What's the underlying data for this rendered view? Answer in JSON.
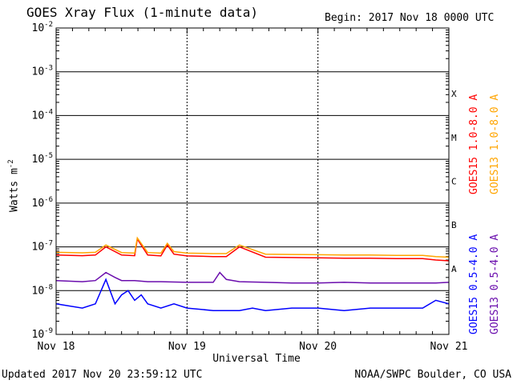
{
  "header": {
    "title": "GOES Xray Flux (1-minute data)",
    "begin": "Begin:  2017 Nov 18 0000 UTC"
  },
  "footer": {
    "updated": "Updated 2017 Nov 20 23:59:12 UTC",
    "credit": "NOAA/SWPC Boulder, CO USA"
  },
  "chart_data": {
    "type": "line",
    "title": "GOES Xray Flux (1-minute data)",
    "xlabel": "Universal Time",
    "ylabel": "Watts m",
    "ylabel_superscript": "-2",
    "yscale": "log",
    "ylim": [
      1e-09,
      0.01
    ],
    "xlim": [
      0,
      3
    ],
    "x_unit": "days since 2017 Nov 18 00:00 UTC",
    "x_ticks": [
      {
        "x": 0,
        "label": "Nov 18"
      },
      {
        "x": 1,
        "label": "Nov 19"
      },
      {
        "x": 2,
        "label": "Nov 20"
      },
      {
        "x": 3,
        "label": "Nov 21"
      }
    ],
    "y_ticks": [
      {
        "exp": -2,
        "label": "10",
        "sup": "-2"
      },
      {
        "exp": -3,
        "label": "10",
        "sup": "-3"
      },
      {
        "exp": -4,
        "label": "10",
        "sup": "-4"
      },
      {
        "exp": -5,
        "label": "10",
        "sup": "-5"
      },
      {
        "exp": -6,
        "label": "10",
        "sup": "-6"
      },
      {
        "exp": -7,
        "label": "10",
        "sup": "-7"
      },
      {
        "exp": -8,
        "label": "10",
        "sup": "-8"
      },
      {
        "exp": -9,
        "label": "10",
        "sup": "-9"
      }
    ],
    "flare_classes": [
      {
        "label": "X",
        "exp": -3.5
      },
      {
        "label": "M",
        "exp": -4.5
      },
      {
        "label": "C",
        "exp": -5.5
      },
      {
        "label": "B",
        "exp": -6.5
      },
      {
        "label": "A",
        "exp": -7.5
      }
    ],
    "grid": true,
    "legend_position": "right",
    "series": [
      {
        "name": "GOES15 1.0-8.0 A",
        "color": "#ff0000",
        "x": [
          0,
          0.2,
          0.3,
          0.38,
          0.5,
          0.6,
          0.62,
          0.7,
          0.8,
          0.85,
          0.9,
          1.0,
          1.2,
          1.3,
          1.4,
          1.6,
          1.8,
          2.0,
          2.2,
          2.4,
          2.6,
          2.8,
          2.9,
          3.0
        ],
        "y": [
          6.5e-08,
          6.3e-08,
          6.5e-08,
          1e-07,
          6.5e-08,
          6.3e-08,
          1.5e-07,
          6.5e-08,
          6.2e-08,
          1.1e-07,
          6.8e-08,
          6.2e-08,
          6e-08,
          6e-08,
          1e-07,
          5.8e-08,
          5.7e-08,
          5.6e-08,
          5.5e-08,
          5.5e-08,
          5.4e-08,
          5.4e-08,
          5e-08,
          4.8e-08
        ]
      },
      {
        "name": "GOES13 1.0-8.0 A",
        "color": "#ffa500",
        "x": [
          0,
          0.2,
          0.3,
          0.38,
          0.5,
          0.6,
          0.62,
          0.7,
          0.8,
          0.85,
          0.9,
          1.0,
          1.2,
          1.3,
          1.4,
          1.6,
          1.8,
          2.0,
          2.2,
          2.4,
          2.6,
          2.8,
          2.9,
          3.0
        ],
        "y": [
          7.5e-08,
          7.3e-08,
          7.5e-08,
          1.1e-07,
          7.4e-08,
          7.2e-08,
          1.6e-07,
          7.4e-08,
          7.2e-08,
          1.2e-07,
          7.8e-08,
          7.2e-08,
          7e-08,
          7e-08,
          1.1e-07,
          6.8e-08,
          6.7e-08,
          6.6e-08,
          6.5e-08,
          6.5e-08,
          6.4e-08,
          6.4e-08,
          6e-08,
          5.8e-08
        ]
      },
      {
        "name": "GOES15 0.5-4.0 A",
        "color": "#0000ff",
        "x": [
          0,
          0.2,
          0.3,
          0.38,
          0.45,
          0.5,
          0.55,
          0.6,
          0.65,
          0.7,
          0.8,
          0.9,
          1.0,
          1.2,
          1.4,
          1.5,
          1.6,
          1.8,
          2.0,
          2.2,
          2.4,
          2.6,
          2.8,
          2.9,
          3.0
        ],
        "y": [
          5e-09,
          4e-09,
          5e-09,
          1.8e-08,
          5e-09,
          8e-09,
          1e-08,
          6e-09,
          8e-09,
          5e-09,
          4e-09,
          5e-09,
          4e-09,
          3.5e-09,
          3.5e-09,
          4e-09,
          3.5e-09,
          4e-09,
          4e-09,
          3.5e-09,
          4e-09,
          4e-09,
          4e-09,
          6e-09,
          5e-09
        ]
      },
      {
        "name": "GOES13 0.5-4.0 A",
        "color": "#6a0dad",
        "x": [
          0,
          0.2,
          0.3,
          0.38,
          0.45,
          0.5,
          0.6,
          0.7,
          0.8,
          1.0,
          1.2,
          1.25,
          1.3,
          1.4,
          1.6,
          1.8,
          2.0,
          2.2,
          2.4,
          2.6,
          2.8,
          2.9,
          3.0
        ],
        "y": [
          1.7e-08,
          1.6e-08,
          1.7e-08,
          2.6e-08,
          2e-08,
          1.7e-08,
          1.7e-08,
          1.6e-08,
          1.6e-08,
          1.55e-08,
          1.55e-08,
          2.6e-08,
          1.8e-08,
          1.6e-08,
          1.55e-08,
          1.5e-08,
          1.5e-08,
          1.55e-08,
          1.5e-08,
          1.5e-08,
          1.5e-08,
          1.5e-08,
          1.55e-08
        ]
      }
    ]
  }
}
